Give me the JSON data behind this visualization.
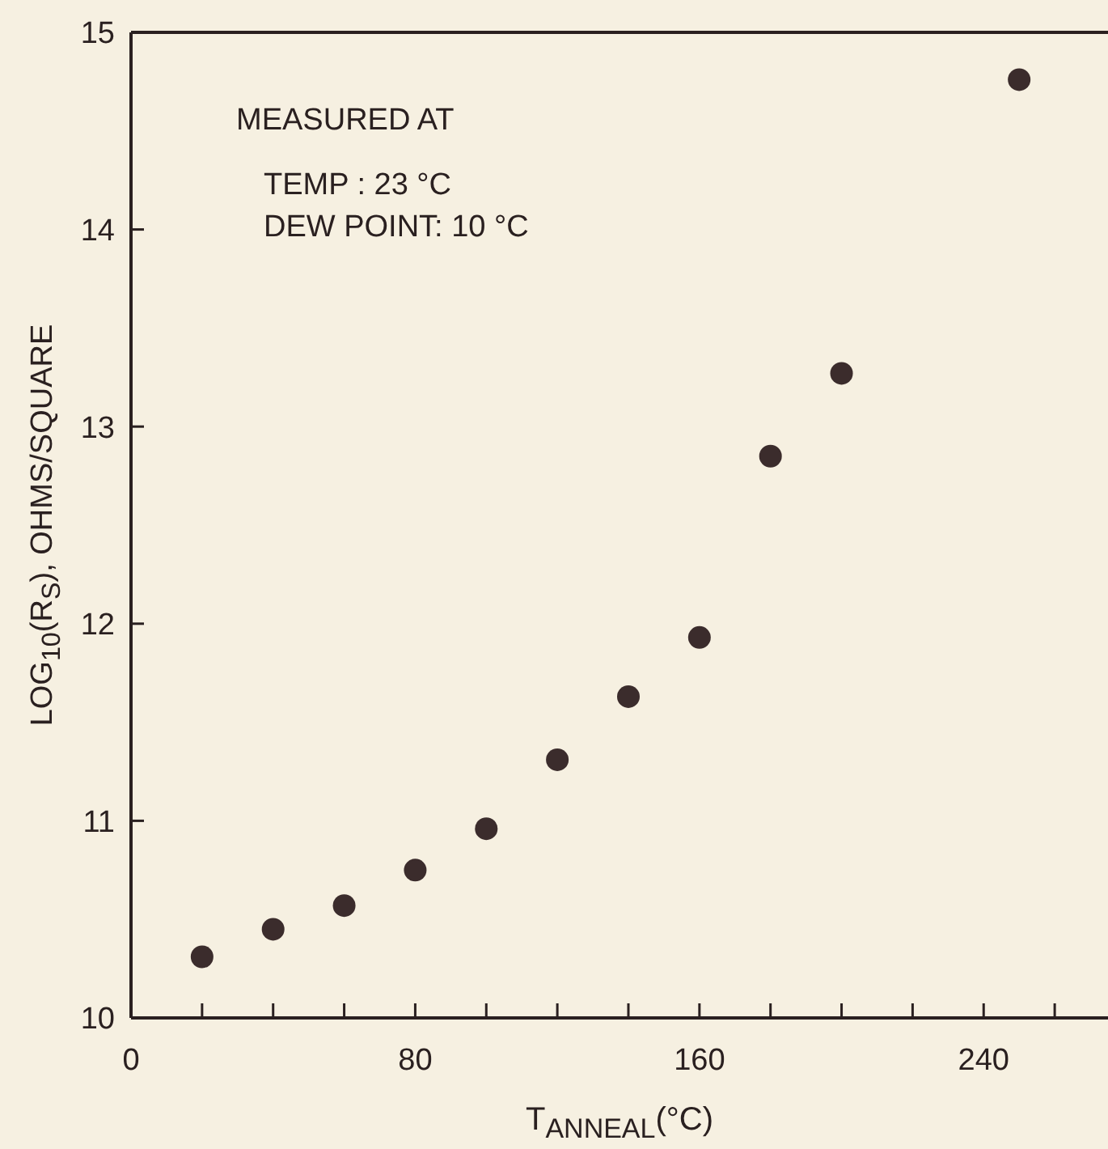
{
  "chart_data": {
    "type": "scatter",
    "xlabel": "T$_{ANNEAL}$(°C)",
    "ylabel": "LOG$_{10}$(R$_{S}$), OHMS/SQUARE",
    "annotations": [
      "MEASURED AT",
      "TEMP : 23 °C",
      "DEW POINT: 10 °C"
    ],
    "x": [
      20,
      40,
      60,
      80,
      100,
      120,
      140,
      160,
      180,
      200,
      250
    ],
    "values": [
      10.31,
      10.45,
      10.57,
      10.75,
      10.96,
      11.31,
      11.63,
      11.93,
      12.85,
      13.27,
      14.76
    ],
    "color": "#3b2c2c",
    "marker": "circle",
    "xlim": [
      0,
      275
    ],
    "xticks": [
      0,
      {
        "value": 20,
        "label": null
      },
      {
        "value": 40,
        "label": null
      },
      {
        "value": 60,
        "label": null
      },
      80,
      {
        "value": 100,
        "label": null
      },
      {
        "value": 120,
        "label": null
      },
      {
        "value": 140,
        "label": null
      },
      160,
      {
        "value": 180,
        "label": null
      },
      {
        "value": 200,
        "label": null
      },
      {
        "value": 220,
        "label": null
      },
      240,
      {
        "value": 260,
        "label": null
      }
    ],
    "ylim": [
      10,
      15
    ],
    "yticks": [
      10,
      11,
      12,
      13,
      14,
      15
    ]
  }
}
